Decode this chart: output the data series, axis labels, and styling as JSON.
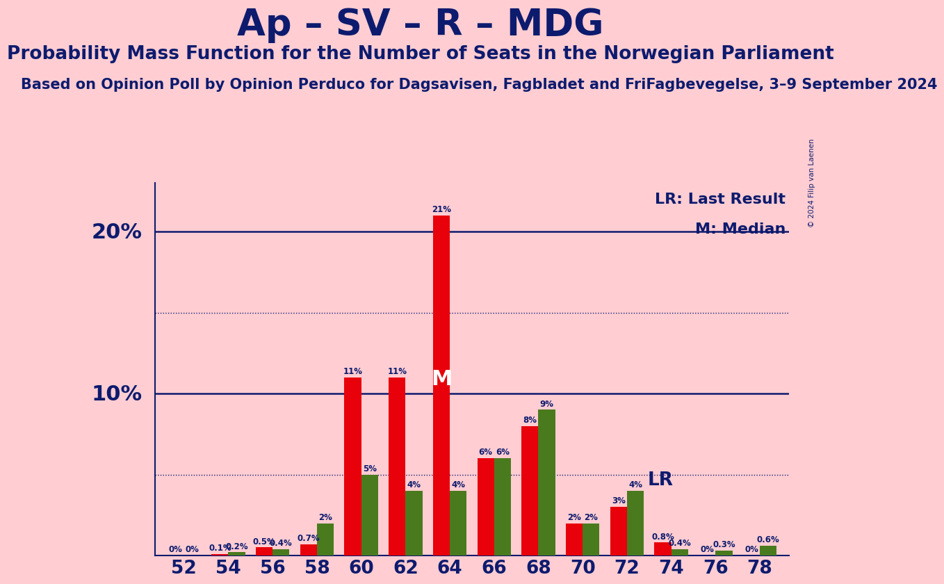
{
  "title": "Ap – SV – R – MDG",
  "subtitle": "Probability Mass Function for the Number of Seats in the Norwegian Parliament",
  "source_line": "Based on Opinion Poll by Opinion Perduco for Dagsavisen, Fagbladet and FriFagbevegelse, 3–9 September 2024",
  "copyright": "© 2024 Filip van Laenen",
  "background_color": "#FFCDD2",
  "bar_color_red": "#E8000A",
  "bar_color_green": "#4A7A1E",
  "text_color": "#0D1B6E",
  "seats": [
    52,
    54,
    56,
    58,
    60,
    62,
    64,
    66,
    68,
    70,
    72,
    74,
    76,
    78
  ],
  "pmf_values": [
    0.0,
    0.1,
    0.5,
    0.7,
    11.0,
    11.0,
    21.0,
    6.0,
    8.0,
    2.0,
    3.0,
    0.8,
    0.0,
    0.0
  ],
  "lr_values": [
    0.0,
    0.2,
    0.4,
    2.0,
    5.0,
    4.0,
    4.0,
    6.0,
    9.0,
    2.0,
    4.0,
    0.4,
    0.3,
    0.6
  ],
  "pmf_labels": [
    "0%",
    "0.1%",
    "0.5%",
    "0.7%",
    "11%",
    "11%",
    "21%",
    "6%",
    "8%",
    "2%",
    "3%",
    "0.8%",
    "0%",
    "0%"
  ],
  "lr_labels": [
    "0%",
    "0.2%",
    "0.4%",
    "2%",
    "5%",
    "4%",
    "4%",
    "6%",
    "9%",
    "2%",
    "4%",
    "0.4%",
    "0.3%",
    "0.6%"
  ],
  "ylim": [
    0,
    23
  ],
  "median_seat": 64,
  "lr_seat": 72,
  "hlines_solid": [
    10.0,
    20.0
  ],
  "hlines_dotted": [
    5.0,
    15.0
  ],
  "title_fontsize": 38,
  "subtitle_fontsize": 19,
  "source_fontsize": 15,
  "ytick_labels": [
    "10%",
    "20%"
  ],
  "ytick_vals": [
    10.0,
    20.0
  ],
  "bar_width": 0.38
}
